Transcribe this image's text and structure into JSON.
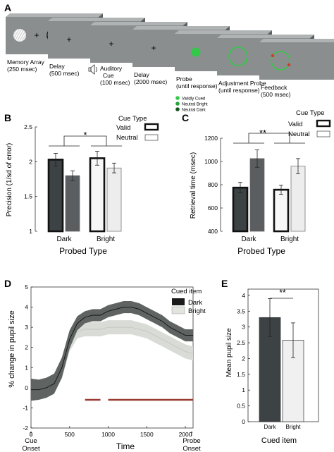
{
  "panel_a": {
    "letter": "A",
    "stages": [
      {
        "label": "Memory Array",
        "sub": "(250 msec)"
      },
      {
        "label": "Delay",
        "sub": "(500 msec)"
      },
      {
        "label": "Auditory",
        "sub": "Cue",
        "sub2": "(100 msec)"
      },
      {
        "label": "Delay",
        "sub": "(2000 msec)"
      },
      {
        "label": "Probe",
        "sub": "(until response)"
      },
      {
        "label": "Adjustment Probe",
        "sub": "(until response)"
      },
      {
        "label": "Feedback",
        "sub": "(500 msec)"
      }
    ],
    "probe_legend": [
      "Validly Cued",
      "Neutral Bright",
      "Neutral Dark"
    ],
    "fixation": "+"
  },
  "panel_b": {
    "letter": "B",
    "ylabel": "Precision (1/sd of error)",
    "xlabel": "Probed Type",
    "legend_title": "Cue Type",
    "legend": [
      "Valid",
      "Neutral"
    ],
    "significance": "*",
    "chart_data": {
      "type": "bar",
      "categories": [
        "Dark",
        "Bright"
      ],
      "yticks": [
        "1",
        "1.5",
        "2",
        "2.5"
      ],
      "ylim": [
        1,
        2.5
      ],
      "series": [
        {
          "name": "Valid",
          "values": [
            2.03,
            2.05
          ],
          "err": [
            0.09,
            0.1
          ]
        },
        {
          "name": "Neutral",
          "values": [
            1.8,
            1.91
          ],
          "err": [
            0.07,
            0.07
          ]
        }
      ]
    }
  },
  "panel_c": {
    "letter": "C",
    "ylabel": "Retrieval time (msec)",
    "xlabel": "Probed Type",
    "legend_title": "Cue Type",
    "legend": [
      "Valid",
      "Neutral"
    ],
    "significance": "**",
    "chart_data": {
      "type": "bar",
      "categories": [
        "Dark",
        "Bright"
      ],
      "yticks": [
        "400",
        "600",
        "800",
        "1000",
        "1200"
      ],
      "ylim": [
        400,
        1200
      ],
      "series": [
        {
          "name": "Valid",
          "values": [
            775,
            757
          ],
          "err": [
            45,
            40
          ]
        },
        {
          "name": "Neutral",
          "values": [
            1025,
            960
          ],
          "err": [
            75,
            65
          ]
        }
      ]
    }
  },
  "panel_d": {
    "letter": "D",
    "ylabel": "% change in pupil size",
    "xlabel": "Time",
    "legend_title": "Cued item",
    "legend": [
      "Dark",
      "Bright"
    ],
    "onset_left": [
      "Cue",
      "Onset"
    ],
    "onset_right": [
      "Probe",
      "Onset"
    ],
    "chart_data": {
      "type": "line",
      "xticks": [
        "0",
        "500",
        "1000",
        "1500",
        "2000"
      ],
      "yticks": [
        "-2",
        "-1",
        "0",
        "1",
        "2",
        "3",
        "4",
        "5"
      ],
      "xlim": [
        0,
        2100
      ],
      "ylim": [
        -2,
        5
      ],
      "x": [
        0,
        100,
        200,
        300,
        400,
        500,
        600,
        700,
        800,
        900,
        1000,
        1100,
        1200,
        1300,
        1400,
        1500,
        1600,
        1700,
        1800,
        1900,
        2000,
        2100
      ],
      "series": [
        {
          "name": "Dark",
          "values": [
            -0.1,
            -0.1,
            0.0,
            0.2,
            1.0,
            2.4,
            3.2,
            3.5,
            3.6,
            3.6,
            3.8,
            3.9,
            4.0,
            4.0,
            3.9,
            3.7,
            3.5,
            3.3,
            3.0,
            2.8,
            2.6,
            2.6
          ],
          "se": [
            0.55,
            0.5,
            0.5,
            0.5,
            0.5,
            0.45,
            0.35,
            0.3,
            0.3,
            0.3,
            0.3,
            0.3,
            0.3,
            0.3,
            0.3,
            0.3,
            0.3,
            0.3,
            0.3,
            0.3,
            0.3,
            0.3
          ]
        },
        {
          "name": "Bright",
          "values": [
            -0.1,
            -0.1,
            0.0,
            0.2,
            0.9,
            2.2,
            2.8,
            2.9,
            2.9,
            2.9,
            3.0,
            3.0,
            3.0,
            3.0,
            2.9,
            2.8,
            2.6,
            2.4,
            2.2,
            2.0,
            1.8,
            1.7
          ],
          "se": [
            0.45,
            0.45,
            0.45,
            0.45,
            0.45,
            0.4,
            0.35,
            0.35,
            0.35,
            0.35,
            0.35,
            0.35,
            0.35,
            0.35,
            0.35,
            0.35,
            0.35,
            0.35,
            0.35,
            0.35,
            0.35,
            0.35
          ]
        }
      ],
      "significant_intervals": [
        [
          700,
          900
        ],
        [
          1000,
          2100
        ]
      ]
    }
  },
  "panel_e": {
    "letter": "E",
    "ylabel": "Mean pupil size",
    "xlabel": "Cued item",
    "significance": "**",
    "chart_data": {
      "type": "bar",
      "categories": [
        "Dark",
        "Bright"
      ],
      "yticks": [
        "0",
        "0.5",
        "1",
        "1.5",
        "2",
        "2.5",
        "3",
        "3.5",
        "4"
      ],
      "ylim": [
        0,
        4.2
      ],
      "values": [
        3.3,
        2.58
      ],
      "err": [
        0.6,
        0.55
      ]
    }
  },
  "colors": {
    "dark": "#3d4244",
    "bright": "#f0f0f0",
    "screen": "#8a8e8e",
    "cue_green": "#33c948",
    "sig_bar": "#9a3a32",
    "dark_band": "#5f6462",
    "bright_band": "#d9dcd6"
  }
}
